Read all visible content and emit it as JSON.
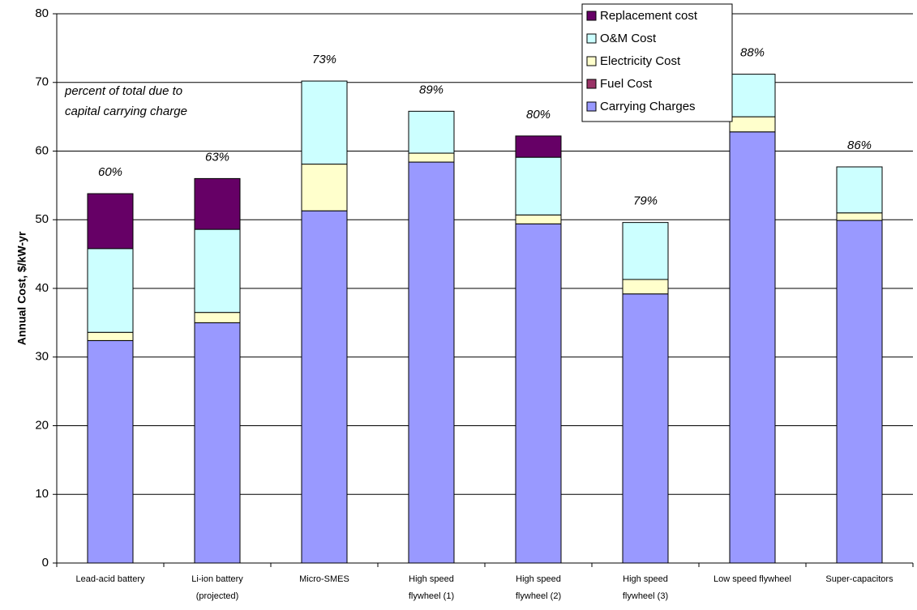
{
  "chart_data": {
    "type": "stacked_bar",
    "y_label": "Annual Cost, $/kW-yr",
    "annotation_lines": [
      "percent of total due to",
      "capital carrying charge"
    ],
    "categories": [
      [
        "Lead-acid battery"
      ],
      [
        "Li-ion battery",
        "(projected)"
      ],
      [
        "Micro-SMES"
      ],
      [
        "High speed",
        "flywheel (1)"
      ],
      [
        "High speed",
        "flywheel (2)"
      ],
      [
        "High speed",
        "flywheel (3)"
      ],
      [
        "Low speed flywheel"
      ],
      [
        "Super-capacitors"
      ]
    ],
    "series": [
      {
        "name": "Carrying Charges",
        "color": "#9999ff",
        "values": [
          32.4,
          35.0,
          51.3,
          58.4,
          49.4,
          39.2,
          62.8,
          49.9
        ]
      },
      {
        "name": "Fuel Cost",
        "color": "#993366",
        "values": [
          0,
          0,
          0,
          0,
          0,
          0,
          0,
          0
        ]
      },
      {
        "name": "Electricity Cost",
        "color": "#ffffcc",
        "values": [
          1.2,
          1.5,
          6.8,
          1.3,
          1.3,
          2.1,
          2.2,
          1.1
        ]
      },
      {
        "name": "O&M Cost",
        "color": "#ccffff",
        "values": [
          12.2,
          12.1,
          12.1,
          6.1,
          8.4,
          8.3,
          6.2,
          6.7
        ]
      },
      {
        "name": "Replacement cost",
        "color": "#660066",
        "values": [
          8.0,
          7.4,
          0,
          0,
          3.1,
          0,
          0,
          0
        ]
      }
    ],
    "percent_labels": [
      "60%",
      "63%",
      "73%",
      "89%",
      "80%",
      "79%",
      "88%",
      "86%"
    ],
    "ylim": [
      0,
      80
    ],
    "yticks": [
      0,
      10,
      20,
      30,
      40,
      50,
      60,
      70,
      80
    ],
    "grid": true
  }
}
